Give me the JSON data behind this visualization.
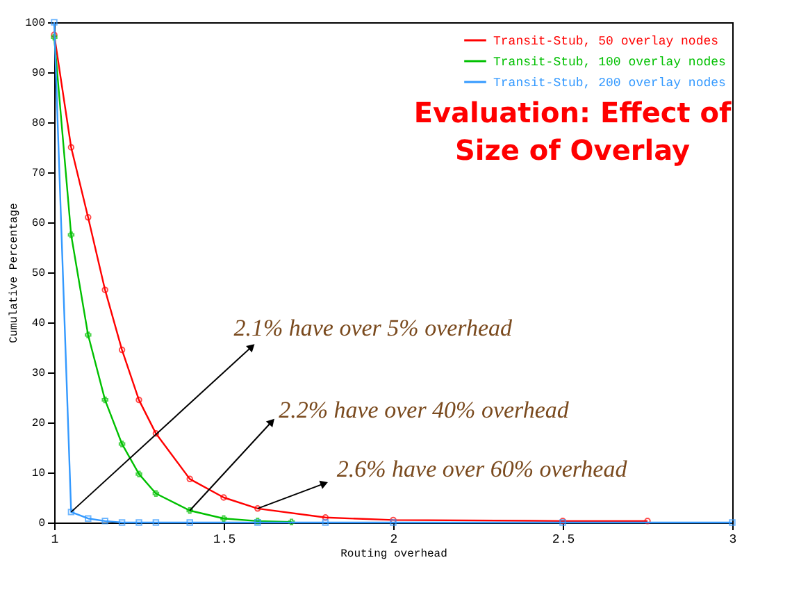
{
  "chart_data": {
    "type": "line",
    "title": "Evaluation: Effect of Size of Overlay",
    "xlabel": "Routing overhead",
    "ylabel": "Cumulative Percentage",
    "xlim": [
      1,
      3
    ],
    "xticks": [
      1,
      1.5,
      2,
      2.5,
      3
    ],
    "ylim": [
      0,
      100
    ],
    "yticks": [
      0,
      10,
      20,
      30,
      40,
      50,
      60,
      70,
      80,
      90,
      100
    ],
    "grid": false,
    "legend": "top right",
    "line_style": "solid",
    "series": [
      {
        "name": "Transit-Stub, 50 overlay nodes",
        "color": "#ff0000",
        "marker": "circle",
        "x": [
          1,
          1.05,
          1.1,
          1.15,
          1.2,
          1.25,
          1.3,
          1.4,
          1.5,
          1.6,
          1.8,
          2,
          2.5,
          2.75
        ],
        "values": [
          97.5,
          75,
          61,
          46.5,
          34.5,
          24.5,
          17.8,
          8.7,
          5,
          2.8,
          1,
          0.5,
          0.3,
          0.3
        ]
      },
      {
        "name": "Transit-Stub, 100 overlay nodes",
        "color": "#00c000",
        "marker": "cross",
        "x": [
          1,
          1.05,
          1.1,
          1.15,
          1.2,
          1.25,
          1.3,
          1.4,
          1.5,
          1.6,
          1.7
        ],
        "values": [
          97,
          57.5,
          37.5,
          24.5,
          15.7,
          9.7,
          5.8,
          2.4,
          0.8,
          0.3,
          0.1
        ]
      },
      {
        "name": "Transit-Stub, 200 overlay nodes",
        "color": "#3399ff",
        "marker": "square",
        "x": [
          1,
          1.05,
          1.1,
          1.15,
          1.2,
          1.25,
          1.3,
          1.4,
          1.6,
          1.8,
          2,
          2.5,
          3
        ],
        "values": [
          100,
          2.1,
          0.8,
          0.3,
          0,
          0,
          0,
          0,
          0,
          0,
          0,
          0,
          0
        ]
      }
    ],
    "annotations": [
      {
        "text": "2.1% have over 5% overhead",
        "x": 1.05,
        "y": 2.1
      },
      {
        "text": "2.2% have over 40% overhead",
        "x": 1.4,
        "y": 2.4
      },
      {
        "text": "2.6% have over 60% overhead",
        "x": 1.6,
        "y": 2.8
      }
    ]
  }
}
